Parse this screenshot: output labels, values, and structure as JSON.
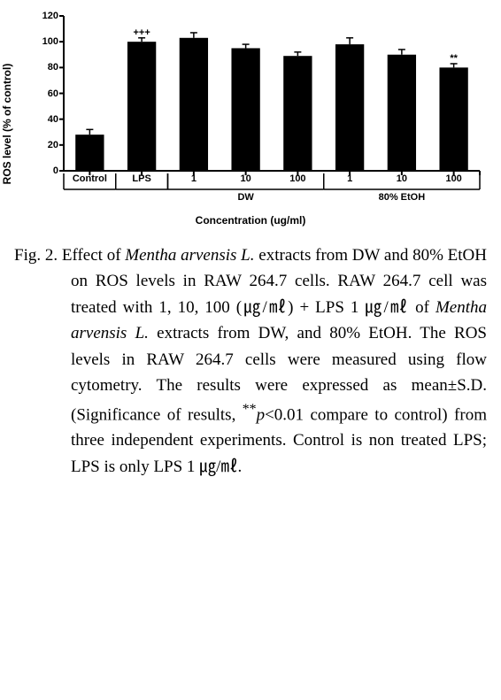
{
  "chart": {
    "type": "bar",
    "y_axis_label": "ROS level (% of control)",
    "x_axis_title": "Concentration (ug/ml)",
    "ylim": [
      0,
      120
    ],
    "ytick_step": 20,
    "yticks": [
      0,
      20,
      40,
      60,
      80,
      100,
      120
    ],
    "axis_color": "#000000",
    "axis_width": 2,
    "tick_length": 5,
    "bar_color": "#000000",
    "bar_width_rel": 0.55,
    "background_color": "#ffffff",
    "error_cap_width": 8,
    "error_line_width": 1.5,
    "n_slots": 8,
    "bars": [
      {
        "slot": 0,
        "category": "Control",
        "value": 28,
        "err": 4,
        "sig": ""
      },
      {
        "slot": 1,
        "category": "LPS",
        "value": 100,
        "err": 3,
        "sig": "+++"
      },
      {
        "slot": 2,
        "category": "1",
        "value": 103,
        "err": 4,
        "sig": ""
      },
      {
        "slot": 3,
        "category": "10",
        "value": 95,
        "err": 3,
        "sig": ""
      },
      {
        "slot": 4,
        "category": "100",
        "value": 89,
        "err": 3,
        "sig": ""
      },
      {
        "slot": 5,
        "category": "1",
        "value": 98,
        "err": 5,
        "sig": ""
      },
      {
        "slot": 6,
        "category": "10",
        "value": 90,
        "err": 4,
        "sig": ""
      },
      {
        "slot": 7,
        "category": "100",
        "value": 80,
        "err": 3,
        "sig": "**"
      }
    ],
    "group_brackets": [
      {
        "label": "DW",
        "from_slot": 2,
        "to_slot": 4
      },
      {
        "label": "80% EtOH",
        "from_slot": 5,
        "to_slot": 7
      }
    ],
    "font_family": "Arial",
    "tick_fontsize": 11,
    "axis_label_fontsize": 12,
    "sig_fontsize": 11
  },
  "caption": {
    "lead": "Fig. 2.",
    "t1": "Effect of ",
    "it1": "Mentha arvensis L.",
    "t2": " extracts from DW and 80% EtOH on ROS levels in RAW 264.7 cells. RAW 264.7 cell was treated with 1, 10, 100 (㎍/㎖) + LPS 1 ㎍/㎖ of ",
    "it2": "Mentha arvensis L.",
    "t3": " extracts from DW, and 80% EtOH. The ROS levels in RAW 264.7 cells were measured using flow cytometry. The results were expressed as mean±S.D. (Significance of results, ",
    "sup": "**",
    "it3": "p",
    "t4": "<0.01 compare to control) from three independent experiments. Control is non treated LPS; LPS is only LPS 1 ㎍/㎖."
  }
}
